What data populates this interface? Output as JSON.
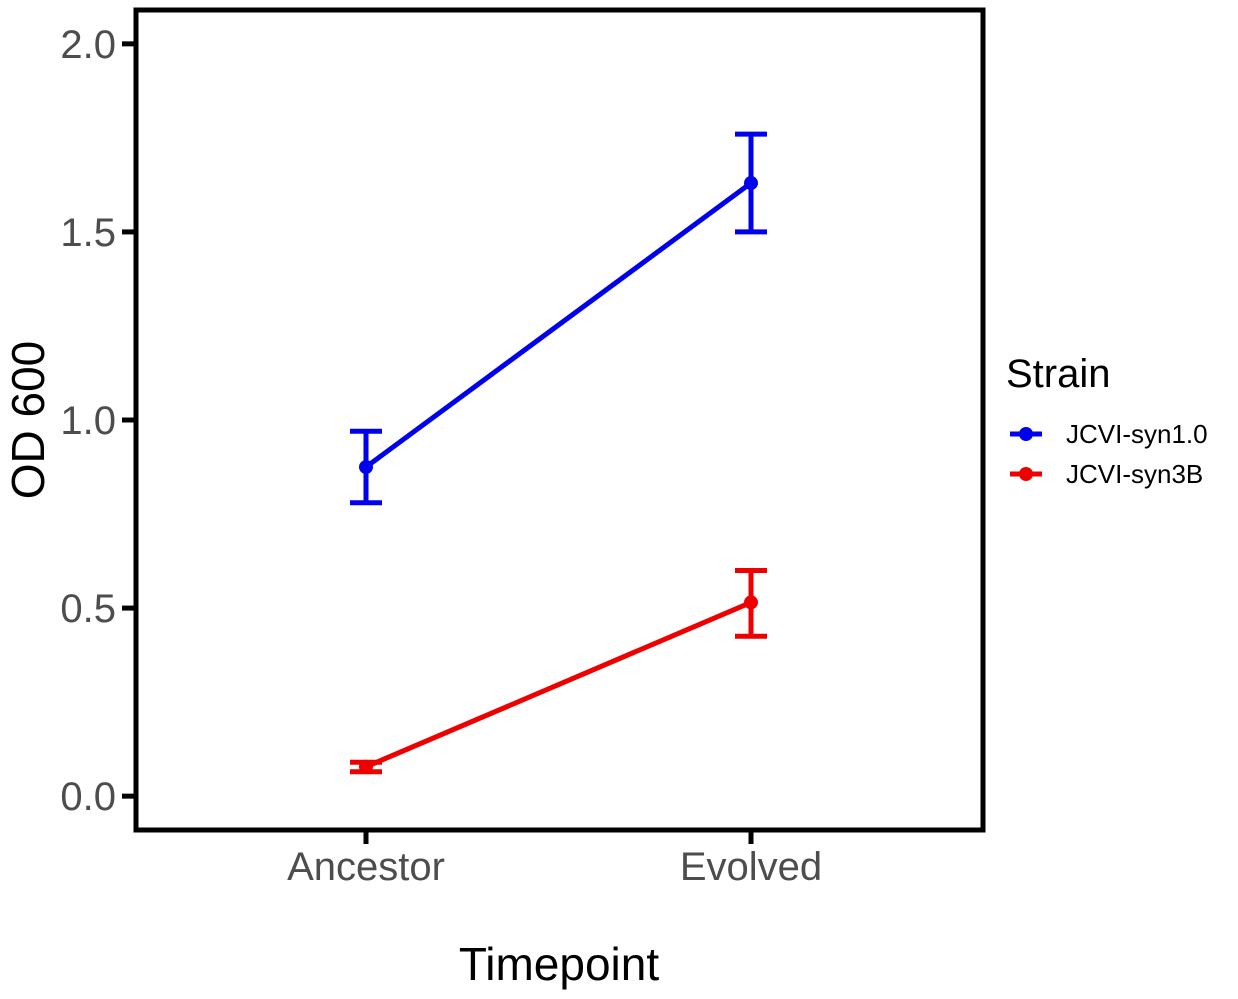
{
  "chart_data": {
    "type": "line",
    "title": "",
    "xlabel": "Timepoint",
    "ylabel": "OD 600",
    "categories": [
      "Ancestor",
      "Evolved"
    ],
    "ylim": [
      -0.09,
      2.09
    ],
    "yticks": [
      0.0,
      0.5,
      1.0,
      1.5,
      2.0
    ],
    "ytick_labels": [
      "0.0",
      "0.5",
      "1.0",
      "1.5",
      "2.0"
    ],
    "grid": false,
    "legend": {
      "title": "Strain",
      "placement": "right"
    },
    "series": [
      {
        "name": "JCVI-syn1.0",
        "color": "#0000ee",
        "values": [
          0.875,
          1.63
        ],
        "error_low": [
          0.78,
          1.5
        ],
        "error_high": [
          0.97,
          1.76
        ]
      },
      {
        "name": "JCVI-syn3B",
        "color": "#ee0000",
        "values": [
          0.078,
          0.515
        ],
        "error_low": [
          0.065,
          0.425
        ],
        "error_high": [
          0.09,
          0.6
        ]
      }
    ]
  }
}
